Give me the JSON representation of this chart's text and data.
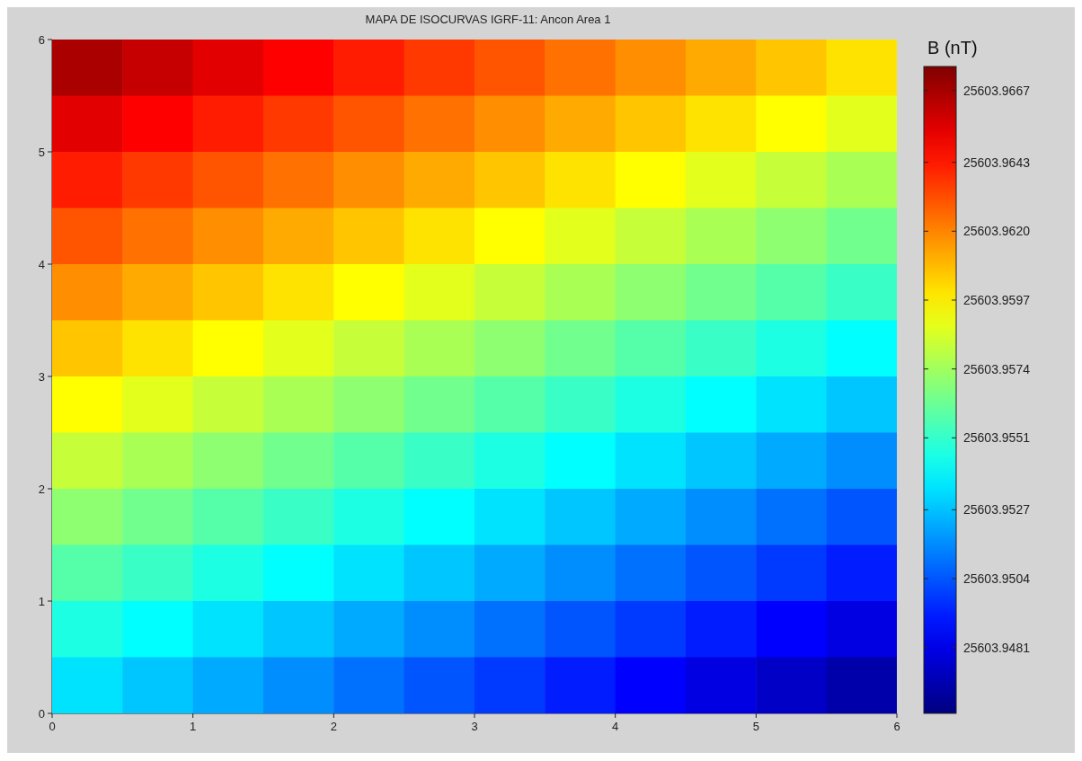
{
  "chart_data": {
    "type": "heatmap",
    "title": "MAPA DE ISOCURVAS IGRF-11: Ancon Area 1",
    "clabel": "B (nT)",
    "x": [
      0.25,
      0.75,
      1.25,
      1.75,
      2.25,
      2.75,
      3.25,
      3.75,
      4.25,
      4.75,
      5.25,
      5.75
    ],
    "xlim": [
      0,
      6
    ],
    "xticks": [
      0,
      1,
      2,
      3,
      4,
      5,
      6
    ],
    "ylim": [
      0,
      6
    ],
    "yticks": [
      0,
      1,
      2,
      3,
      4,
      5,
      6
    ],
    "cells": [
      [
        25603.9666,
        25603.966,
        25603.9654,
        25603.9648,
        25603.9642,
        25603.9636,
        25603.963,
        25603.9624,
        25603.9618,
        25603.9612,
        25603.9606,
        25603.96
      ],
      [
        25603.9654,
        25603.9648,
        25603.9642,
        25603.9636,
        25603.963,
        25603.9624,
        25603.9618,
        25603.9612,
        25603.9606,
        25603.96,
        25603.9594,
        25603.9588
      ],
      [
        25603.9642,
        25603.9636,
        25603.963,
        25603.9624,
        25603.9618,
        25603.9612,
        25603.9606,
        25603.96,
        25603.9594,
        25603.9588,
        25603.9582,
        25603.9576
      ],
      [
        25603.963,
        25603.9624,
        25603.9618,
        25603.9612,
        25603.9606,
        25603.96,
        25603.9594,
        25603.9588,
        25603.9582,
        25603.9576,
        25603.957,
        25603.9564
      ],
      [
        25603.9618,
        25603.9612,
        25603.9606,
        25603.96,
        25603.9594,
        25603.9588,
        25603.9582,
        25603.9576,
        25603.957,
        25603.9564,
        25603.9558,
        25603.9552
      ],
      [
        25603.9606,
        25603.96,
        25603.9594,
        25603.9588,
        25603.9582,
        25603.9576,
        25603.957,
        25603.9564,
        25603.9558,
        25603.9552,
        25603.9546,
        25603.954
      ],
      [
        25603.9594,
        25603.9588,
        25603.9582,
        25603.9576,
        25603.957,
        25603.9564,
        25603.9558,
        25603.9552,
        25603.9546,
        25603.954,
        25603.9534,
        25603.9528
      ],
      [
        25603.9582,
        25603.9576,
        25603.957,
        25603.9564,
        25603.9558,
        25603.9552,
        25603.9546,
        25603.954,
        25603.9534,
        25603.9528,
        25603.9522,
        25603.9516
      ],
      [
        25603.957,
        25603.9564,
        25603.9558,
        25603.9552,
        25603.9546,
        25603.954,
        25603.9534,
        25603.9528,
        25603.9522,
        25603.9516,
        25603.951,
        25603.9504
      ],
      [
        25603.9558,
        25603.9552,
        25603.9546,
        25603.954,
        25603.9534,
        25603.9528,
        25603.9522,
        25603.9516,
        25603.951,
        25603.9504,
        25603.9498,
        25603.9492
      ],
      [
        25603.9546,
        25603.954,
        25603.9534,
        25603.9528,
        25603.9522,
        25603.9516,
        25603.951,
        25603.9504,
        25603.9498,
        25603.9492,
        25603.9486,
        25603.948
      ],
      [
        25603.9534,
        25603.9528,
        25603.9522,
        25603.9516,
        25603.951,
        25603.9504,
        25603.9498,
        25603.9492,
        25603.9486,
        25603.948,
        25603.9474,
        25603.9468
      ]
    ],
    "clim": [
      25603.9459,
      25603.9675
    ],
    "cticks": [
      {
        "value": 25603.9481,
        "label": "25603.9481"
      },
      {
        "value": 25603.9504,
        "label": "25603.9504"
      },
      {
        "value": 25603.9527,
        "label": "25603.9527"
      },
      {
        "value": 25603.9551,
        "label": "25603.9551"
      },
      {
        "value": 25603.9574,
        "label": "25603.9574"
      },
      {
        "value": 25603.9597,
        "label": "25603.9597"
      },
      {
        "value": 25603.962,
        "label": "25603.9620"
      },
      {
        "value": 25603.9643,
        "label": "25603.9643"
      },
      {
        "value": 25603.9667,
        "label": "25603.9667"
      }
    ]
  }
}
